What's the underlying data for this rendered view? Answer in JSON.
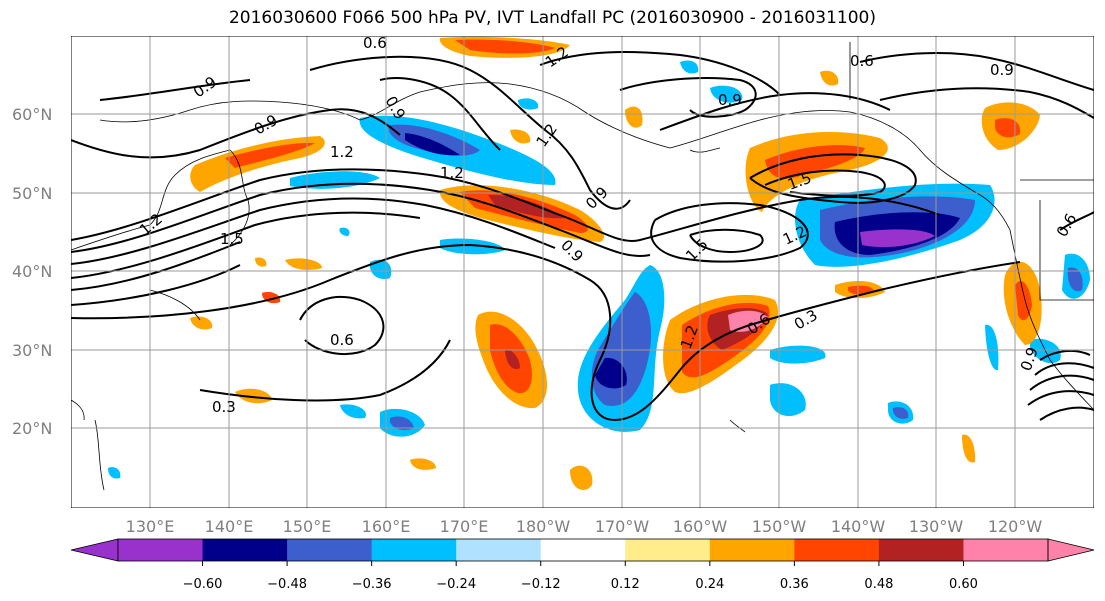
{
  "title": "2016030600 F066 500 hPa PV, IVT Landfall PC (2016030900 - 2016031100)",
  "latitude_labels": [
    "60°N",
    "50°N",
    "40°N",
    "30°N",
    "20°N"
  ],
  "longitude_labels": [
    "130°E",
    "140°E",
    "150°E",
    "160°E",
    "170°E",
    "180°W",
    "170°W",
    "160°W",
    "150°W",
    "140°W",
    "130°W",
    "120°W"
  ],
  "contour_labels": [
    "0.6",
    "0.9",
    "1.2",
    "1.5",
    "0.3"
  ],
  "colorbar": {
    "tick_labels": [
      "−0.60",
      "−0.48",
      "−0.36",
      "−0.24",
      "−0.12",
      "0.12",
      "0.24",
      "0.36",
      "0.48",
      "0.60"
    ],
    "colors": [
      "#9932cc",
      "#00008b",
      "#3c5fcd",
      "#00bfff",
      "#b0e2ff",
      "#ffffff",
      "#ffec8b",
      "#ffa500",
      "#ff4500",
      "#b22222",
      "#ff82ab",
      "#ff82ab"
    ]
  }
}
